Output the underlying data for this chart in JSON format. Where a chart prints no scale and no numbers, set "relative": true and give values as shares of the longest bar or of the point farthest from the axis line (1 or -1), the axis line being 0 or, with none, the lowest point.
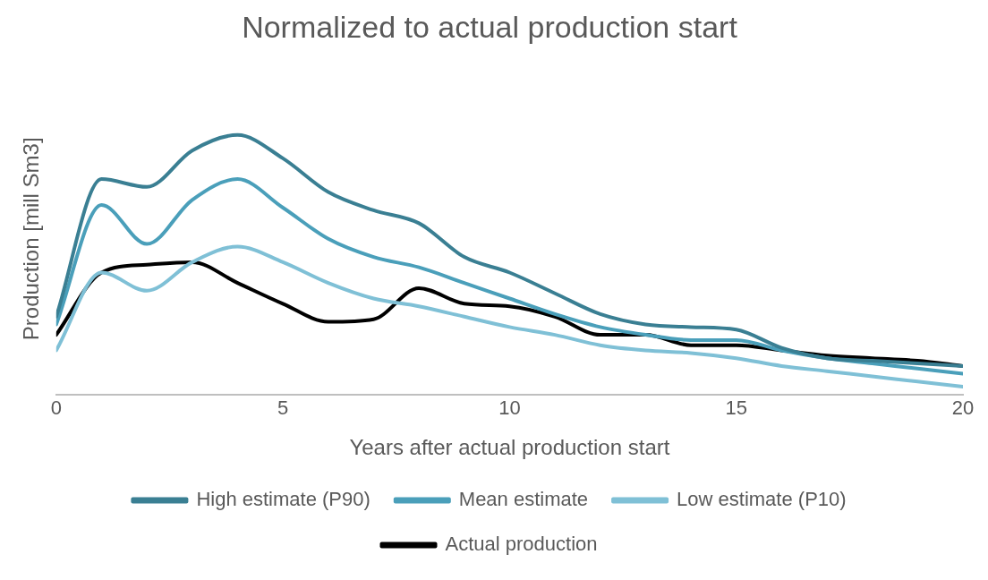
{
  "chart_data": {
    "type": "line",
    "title": "Normalized to actual production start",
    "xlabel": "Years after actual production start",
    "ylabel": "Production [mill Sm3]",
    "relative": true,
    "x": [
      0,
      1,
      2,
      3,
      4,
      5,
      6,
      7,
      8,
      9,
      10,
      11,
      12,
      13,
      14,
      15,
      16,
      17,
      18,
      19,
      20
    ],
    "xlim": [
      0,
      20
    ],
    "xticks": [
      0,
      5,
      10,
      15,
      20
    ],
    "grid": false,
    "legend": "bottom",
    "marker": "none",
    "line_style": "solid",
    "series": [
      {
        "name": "High estimate (P90)",
        "color": "#3a7f93",
        "values": [
          0.3,
          0.83,
          0.8,
          0.94,
          1.0,
          0.91,
          0.78,
          0.71,
          0.66,
          0.53,
          0.47,
          0.39,
          0.31,
          0.27,
          0.26,
          0.25,
          0.18,
          0.14,
          0.13,
          0.12,
          0.11
        ]
      },
      {
        "name": "Mean estimate",
        "color": "#4a9fba",
        "values": [
          0.27,
          0.73,
          0.58,
          0.75,
          0.83,
          0.72,
          0.6,
          0.53,
          0.49,
          0.43,
          0.37,
          0.31,
          0.26,
          0.23,
          0.21,
          0.21,
          0.17,
          0.14,
          0.12,
          0.1,
          0.08
        ]
      },
      {
        "name": "Low estimate (P10)",
        "color": "#7fc0d6",
        "values": [
          0.17,
          0.47,
          0.4,
          0.51,
          0.57,
          0.51,
          0.43,
          0.37,
          0.34,
          0.3,
          0.26,
          0.23,
          0.19,
          0.17,
          0.16,
          0.14,
          0.11,
          0.09,
          0.07,
          0.05,
          0.03
        ]
      },
      {
        "name": "Actual production",
        "color": "#000000",
        "values": [
          0.23,
          0.47,
          0.5,
          0.51,
          0.43,
          0.35,
          0.28,
          0.29,
          0.41,
          0.35,
          0.34,
          0.3,
          0.23,
          0.23,
          0.19,
          0.19,
          0.17,
          0.15,
          0.14,
          0.13,
          0.11
        ]
      }
    ]
  }
}
